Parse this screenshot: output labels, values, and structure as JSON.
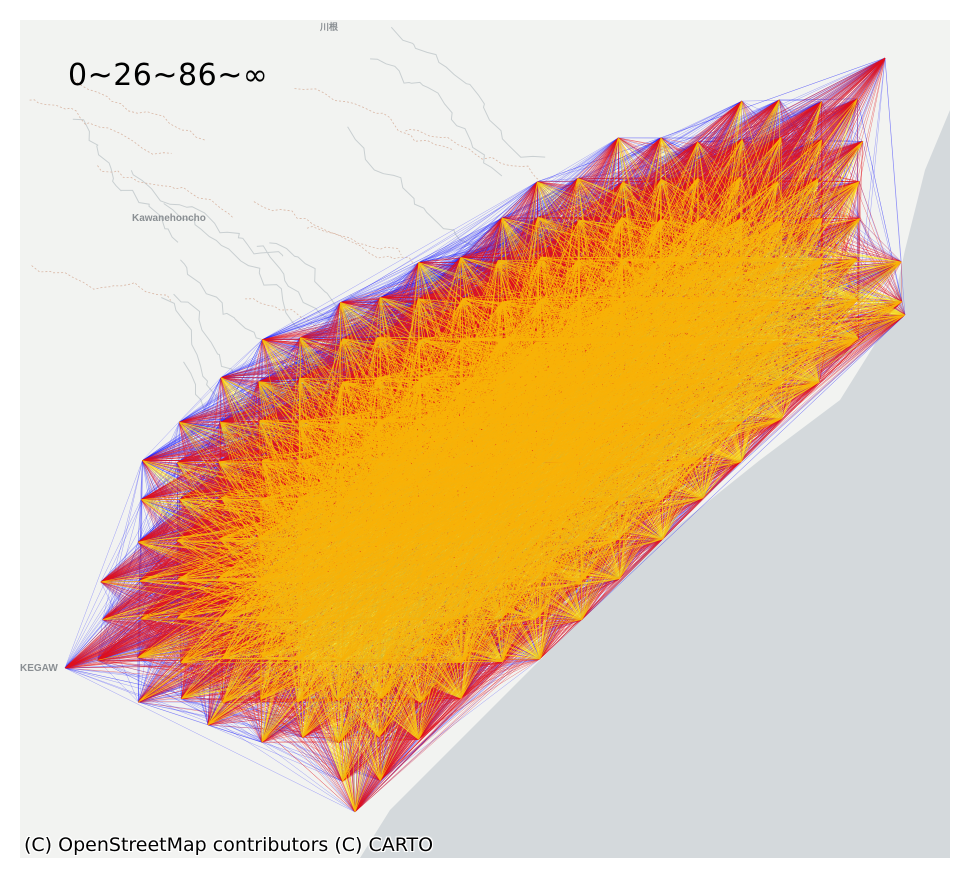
{
  "legend": {
    "title": "0~26~86~∞"
  },
  "basemap": {
    "labels": [
      "Kawanehoncho",
      "KEGAW",
      "川根"
    ],
    "land_color": "#f2f3f1",
    "sea_color": "#d4d9dc",
    "road_color": "#d9b7a5",
    "river_color": "#c9cfd1"
  },
  "flow_classes": [
    {
      "range": "0~26",
      "color": "#1414ff"
    },
    {
      "range": "26~86",
      "color": "#e4101a"
    },
    {
      "range": "86~∞",
      "color": "#ffe800"
    }
  ],
  "attribution": "(C) OpenStreetMap contributors (C) CARTO"
}
